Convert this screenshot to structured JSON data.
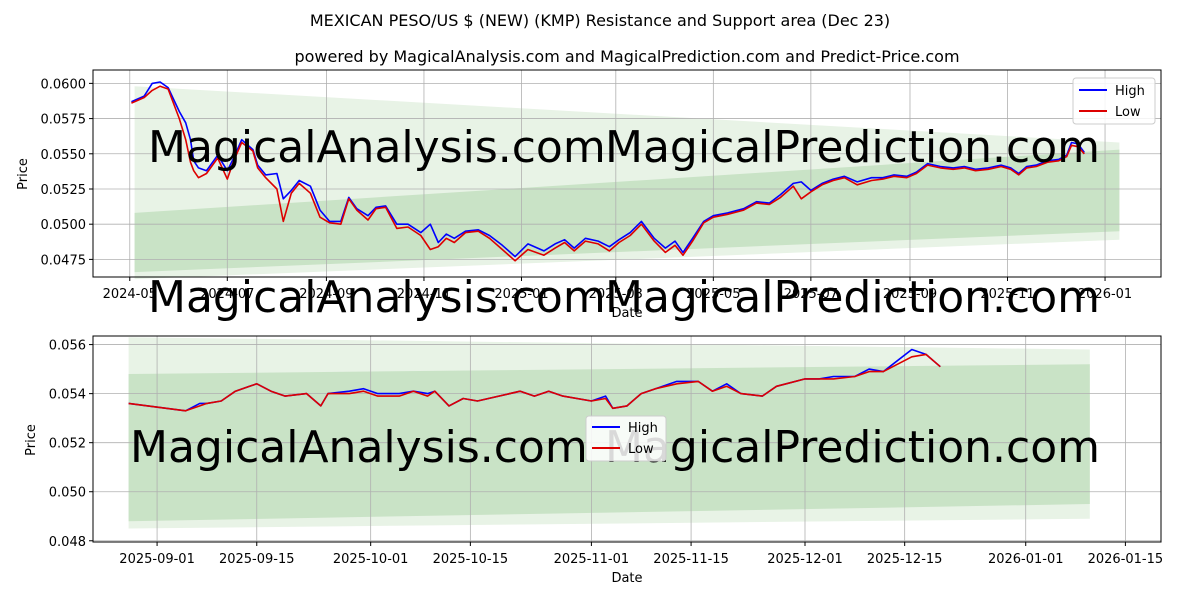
{
  "title": "MEXICAN PESO/US $ (NEW) (KMP) Resistance and Support area (Dec 23)",
  "subtitle": "powered by MagicalAnalysis.com and MagicalPrediction.com and Predict-Price.com",
  "watermarks": [
    "MagicalAnalysis.com",
    "MagicalPrediction.com"
  ],
  "colors": {
    "high": "#0000ff",
    "low": "#dd0000",
    "band_outer": "#e8f3e6",
    "band_inner": "#c9e3c6"
  },
  "chart_data": [
    {
      "type": "line",
      "name": "overview",
      "xlabel": "Date",
      "ylabel": "Price",
      "grid": true,
      "legend": {
        "position": "top-right",
        "entries": [
          "High",
          "Low"
        ]
      },
      "x_ticks": [
        "2024-05",
        "2024-07",
        "2024-09",
        "2024-11",
        "2025-01",
        "2025-03",
        "2025-05",
        "2025-07",
        "2025-09",
        "2025-11",
        "2026-01"
      ],
      "x_tick_dates": [
        "2024-05-01",
        "2024-07-01",
        "2024-09-01",
        "2024-11-01",
        "2025-01-01",
        "2025-03-01",
        "2025-05-01",
        "2025-07-01",
        "2025-09-01",
        "2025-11-01",
        "2026-01-01"
      ],
      "y_ticks": [
        "0.0475",
        "0.0500",
        "0.0525",
        "0.0550",
        "0.0575",
        "0.0600"
      ],
      "y_tick_values": [
        0.0475,
        0.05,
        0.0525,
        0.055,
        0.0575,
        0.06
      ],
      "xlim": [
        "2024-04-08",
        "2026-02-05"
      ],
      "ylim": [
        0.04625,
        0.06095
      ],
      "bands": [
        {
          "name": "outer",
          "x": [
            "2024-05-04",
            "2026-01-10"
          ],
          "upper": [
            0.0598,
            0.0558
          ],
          "lower": [
            0.0461,
            0.0489
          ]
        },
        {
          "name": "inner",
          "x": [
            "2024-05-04",
            "2026-01-10"
          ],
          "upper": [
            0.0508,
            0.0553
          ],
          "lower": [
            0.0466,
            0.0495
          ]
        }
      ],
      "series": [
        {
          "name": "High",
          "x": [
            "2024-05-02",
            "2024-05-10",
            "2024-05-15",
            "2024-05-20",
            "2024-05-25",
            "2024-06-01",
            "2024-06-05",
            "2024-06-08",
            "2024-06-10",
            "2024-06-13",
            "2024-06-18",
            "2024-06-25",
            "2024-07-01",
            "2024-07-05",
            "2024-07-10",
            "2024-07-17",
            "2024-07-20",
            "2024-07-25",
            "2024-08-01",
            "2024-08-05",
            "2024-08-10",
            "2024-08-15",
            "2024-08-22",
            "2024-08-28",
            "2024-09-03",
            "2024-09-10",
            "2024-09-15",
            "2024-09-20",
            "2024-09-27",
            "2024-10-02",
            "2024-10-08",
            "2024-10-15",
            "2024-10-22",
            "2024-10-30",
            "2024-11-05",
            "2024-11-10",
            "2024-11-15",
            "2024-11-20",
            "2024-11-27",
            "2024-12-05",
            "2024-12-12",
            "2024-12-20",
            "2024-12-28",
            "2025-01-05",
            "2025-01-15",
            "2025-01-22",
            "2025-01-28",
            "2025-02-03",
            "2025-02-10",
            "2025-02-18",
            "2025-02-25",
            "2025-03-03",
            "2025-03-10",
            "2025-03-17",
            "2025-03-25",
            "2025-04-01",
            "2025-04-07",
            "2025-04-12",
            "2025-04-18",
            "2025-04-25",
            "2025-05-01",
            "2025-05-10",
            "2025-05-20",
            "2025-05-28",
            "2025-06-05",
            "2025-06-12",
            "2025-06-20",
            "2025-06-25",
            "2025-07-01",
            "2025-07-08",
            "2025-07-15",
            "2025-07-22",
            "2025-07-30",
            "2025-08-08",
            "2025-08-15",
            "2025-08-22",
            "2025-08-30",
            "2025-09-05",
            "2025-09-12",
            "2025-09-20",
            "2025-09-28",
            "2025-10-05",
            "2025-10-12",
            "2025-10-20",
            "2025-10-28",
            "2025-11-03",
            "2025-11-08",
            "2025-11-13",
            "2025-11-19",
            "2025-11-26",
            "2025-12-03",
            "2025-12-08",
            "2025-12-11",
            "2025-12-15",
            "2025-12-19"
          ],
          "values": [
            0.0587,
            0.0591,
            0.06,
            0.0601,
            0.0597,
            0.058,
            0.0572,
            0.056,
            0.0545,
            0.054,
            0.0538,
            0.0549,
            0.0538,
            0.0547,
            0.056,
            0.0553,
            0.0542,
            0.0535,
            0.0536,
            0.0518,
            0.0524,
            0.0531,
            0.0527,
            0.051,
            0.0502,
            0.0502,
            0.0519,
            0.0511,
            0.0506,
            0.0512,
            0.0513,
            0.05,
            0.05,
            0.0494,
            0.05,
            0.0487,
            0.0493,
            0.049,
            0.0495,
            0.0496,
            0.0492,
            0.0485,
            0.0477,
            0.0486,
            0.0481,
            0.0486,
            0.0489,
            0.0483,
            0.049,
            0.0488,
            0.0484,
            0.0489,
            0.0494,
            0.0502,
            0.049,
            0.0483,
            0.0488,
            0.048,
            0.049,
            0.0502,
            0.0506,
            0.0508,
            0.0511,
            0.0516,
            0.0515,
            0.0521,
            0.0529,
            0.053,
            0.0524,
            0.0529,
            0.0532,
            0.0534,
            0.053,
            0.0533,
            0.0533,
            0.0535,
            0.0534,
            0.0537,
            0.0543,
            0.0541,
            0.054,
            0.0541,
            0.0539,
            0.054,
            0.0542,
            0.054,
            0.0536,
            0.0541,
            0.0542,
            0.0545,
            0.0546,
            0.0549,
            0.0558,
            0.0557,
            0.0551
          ]
        },
        {
          "name": "Low",
          "x": [
            "2024-05-02",
            "2024-05-10",
            "2024-05-15",
            "2024-05-20",
            "2024-05-25",
            "2024-06-01",
            "2024-06-05",
            "2024-06-08",
            "2024-06-10",
            "2024-06-13",
            "2024-06-18",
            "2024-06-25",
            "2024-07-01",
            "2024-07-05",
            "2024-07-10",
            "2024-07-17",
            "2024-07-20",
            "2024-07-25",
            "2024-08-01",
            "2024-08-05",
            "2024-08-10",
            "2024-08-15",
            "2024-08-22",
            "2024-08-28",
            "2024-09-03",
            "2024-09-10",
            "2024-09-15",
            "2024-09-20",
            "2024-09-27",
            "2024-10-02",
            "2024-10-08",
            "2024-10-15",
            "2024-10-22",
            "2024-10-30",
            "2024-11-05",
            "2024-11-10",
            "2024-11-15",
            "2024-11-20",
            "2024-11-27",
            "2024-12-05",
            "2024-12-12",
            "2024-12-20",
            "2024-12-28",
            "2025-01-05",
            "2025-01-15",
            "2025-01-22",
            "2025-01-28",
            "2025-02-03",
            "2025-02-10",
            "2025-02-18",
            "2025-02-25",
            "2025-03-03",
            "2025-03-10",
            "2025-03-17",
            "2025-03-25",
            "2025-04-01",
            "2025-04-07",
            "2025-04-12",
            "2025-04-18",
            "2025-04-25",
            "2025-05-01",
            "2025-05-10",
            "2025-05-20",
            "2025-05-28",
            "2025-06-05",
            "2025-06-12",
            "2025-06-20",
            "2025-06-25",
            "2025-07-01",
            "2025-07-08",
            "2025-07-15",
            "2025-07-22",
            "2025-07-30",
            "2025-08-08",
            "2025-08-15",
            "2025-08-22",
            "2025-08-30",
            "2025-09-05",
            "2025-09-12",
            "2025-09-20",
            "2025-09-28",
            "2025-10-05",
            "2025-10-12",
            "2025-10-20",
            "2025-10-28",
            "2025-11-03",
            "2025-11-08",
            "2025-11-13",
            "2025-11-19",
            "2025-11-26",
            "2025-12-03",
            "2025-12-08",
            "2025-12-11",
            "2025-12-15",
            "2025-12-19"
          ],
          "values": [
            0.0586,
            0.059,
            0.0595,
            0.0598,
            0.0596,
            0.0575,
            0.056,
            0.0544,
            0.0538,
            0.0533,
            0.0536,
            0.0547,
            0.0532,
            0.0545,
            0.0558,
            0.0552,
            0.054,
            0.0533,
            0.0525,
            0.0502,
            0.0522,
            0.0529,
            0.0522,
            0.0505,
            0.0501,
            0.05,
            0.0518,
            0.051,
            0.0503,
            0.0511,
            0.0512,
            0.0497,
            0.0498,
            0.0492,
            0.0482,
            0.0484,
            0.049,
            0.0487,
            0.0494,
            0.0495,
            0.049,
            0.0482,
            0.0474,
            0.0482,
            0.0478,
            0.0483,
            0.0487,
            0.0481,
            0.0488,
            0.0486,
            0.0481,
            0.0487,
            0.0492,
            0.05,
            0.0488,
            0.048,
            0.0485,
            0.0478,
            0.0488,
            0.0501,
            0.0505,
            0.0507,
            0.051,
            0.0515,
            0.0514,
            0.0519,
            0.0527,
            0.0518,
            0.0523,
            0.0528,
            0.0531,
            0.0533,
            0.0528,
            0.0531,
            0.0532,
            0.0534,
            0.0533,
            0.0536,
            0.0542,
            0.054,
            0.0539,
            0.054,
            0.0538,
            0.0539,
            0.0541,
            0.0539,
            0.0535,
            0.054,
            0.0541,
            0.0544,
            0.0545,
            0.0548,
            0.0556,
            0.0555,
            0.055
          ]
        }
      ]
    },
    {
      "type": "line",
      "name": "detail",
      "xlabel": "Date",
      "ylabel": "Price",
      "grid": true,
      "legend": {
        "position": "center",
        "entries": [
          "High",
          "Low"
        ]
      },
      "x_ticks": [
        "2025-09-01",
        "2025-09-15",
        "2025-10-01",
        "2025-10-15",
        "2025-11-01",
        "2025-11-15",
        "2025-12-01",
        "2025-12-15",
        "2026-01-01",
        "2026-01-15"
      ],
      "y_ticks": [
        "0.048",
        "0.050",
        "0.052",
        "0.054",
        "0.056"
      ],
      "y_tick_values": [
        0.048,
        0.05,
        0.052,
        0.054,
        0.056
      ],
      "xlim": [
        "2025-08-23",
        "2026-01-20"
      ],
      "ylim": [
        0.04795,
        0.05635
      ],
      "bands": [
        {
          "name": "outer",
          "x": [
            "2025-08-28",
            "2026-01-10"
          ],
          "upper": [
            0.0563,
            0.0558
          ],
          "lower": [
            0.0485,
            0.0489
          ]
        },
        {
          "name": "inner",
          "x": [
            "2025-08-28",
            "2026-01-10"
          ],
          "upper": [
            0.0548,
            0.0552
          ],
          "lower": [
            0.0488,
            0.0495
          ]
        }
      ],
      "series": [
        {
          "name": "High",
          "x": [
            "2025-08-28",
            "2025-09-05",
            "2025-09-07",
            "2025-09-08",
            "2025-09-10",
            "2025-09-12",
            "2025-09-14",
            "2025-09-15",
            "2025-09-17",
            "2025-09-19",
            "2025-09-22",
            "2025-09-24",
            "2025-09-25",
            "2025-09-28",
            "2025-09-30",
            "2025-10-02",
            "2025-10-05",
            "2025-10-07",
            "2025-10-09",
            "2025-10-10",
            "2025-10-12",
            "2025-10-14",
            "2025-10-16",
            "2025-10-22",
            "2025-10-24",
            "2025-10-26",
            "2025-10-28",
            "2025-11-01",
            "2025-11-03",
            "2025-11-04",
            "2025-11-06",
            "2025-11-08",
            "2025-11-10",
            "2025-11-13",
            "2025-11-16",
            "2025-11-18",
            "2025-11-20",
            "2025-11-22",
            "2025-11-25",
            "2025-11-27",
            "2025-12-01",
            "2025-12-03",
            "2025-12-05",
            "2025-12-08",
            "2025-12-10",
            "2025-12-12",
            "2025-12-16",
            "2025-12-18",
            "2025-12-20"
          ],
          "values": [
            0.0536,
            0.0533,
            0.0536,
            0.0536,
            0.0537,
            0.0541,
            0.0543,
            0.0544,
            0.0541,
            0.0539,
            0.054,
            0.0535,
            0.054,
            0.0541,
            0.0542,
            0.054,
            0.054,
            0.0541,
            0.054,
            0.0541,
            0.0535,
            0.0538,
            0.0537,
            0.0541,
            0.0539,
            0.0541,
            0.0539,
            0.0537,
            0.0539,
            0.0534,
            0.0535,
            0.054,
            0.0542,
            0.0545,
            0.0545,
            0.0541,
            0.0544,
            0.054,
            0.0539,
            0.0543,
            0.0546,
            0.0546,
            0.0547,
            0.0547,
            0.055,
            0.0549,
            0.0558,
            0.0556,
            0.0551
          ]
        },
        {
          "name": "Low",
          "x": [
            "2025-08-28",
            "2025-09-05",
            "2025-09-07",
            "2025-09-08",
            "2025-09-10",
            "2025-09-12",
            "2025-09-14",
            "2025-09-15",
            "2025-09-17",
            "2025-09-19",
            "2025-09-22",
            "2025-09-24",
            "2025-09-25",
            "2025-09-28",
            "2025-09-30",
            "2025-10-02",
            "2025-10-05",
            "2025-10-07",
            "2025-10-09",
            "2025-10-10",
            "2025-10-12",
            "2025-10-14",
            "2025-10-16",
            "2025-10-22",
            "2025-10-24",
            "2025-10-26",
            "2025-10-28",
            "2025-11-01",
            "2025-11-03",
            "2025-11-04",
            "2025-11-06",
            "2025-11-08",
            "2025-11-10",
            "2025-11-13",
            "2025-11-16",
            "2025-11-18",
            "2025-11-20",
            "2025-11-22",
            "2025-11-25",
            "2025-11-27",
            "2025-12-01",
            "2025-12-03",
            "2025-12-05",
            "2025-12-08",
            "2025-12-10",
            "2025-12-12",
            "2025-12-16",
            "2025-12-18",
            "2025-12-20"
          ],
          "values": [
            0.0536,
            0.0533,
            0.0535,
            0.0536,
            0.0537,
            0.0541,
            0.0543,
            0.0544,
            0.0541,
            0.0539,
            0.054,
            0.0535,
            0.054,
            0.054,
            0.0541,
            0.0539,
            0.0539,
            0.0541,
            0.0539,
            0.0541,
            0.0535,
            0.0538,
            0.0537,
            0.0541,
            0.0539,
            0.0541,
            0.0539,
            0.0537,
            0.0538,
            0.0534,
            0.0535,
            0.054,
            0.0542,
            0.0544,
            0.0545,
            0.0541,
            0.0543,
            0.054,
            0.0539,
            0.0543,
            0.0546,
            0.0546,
            0.0546,
            0.0547,
            0.0549,
            0.0549,
            0.0555,
            0.0556,
            0.0551
          ]
        }
      ]
    }
  ]
}
